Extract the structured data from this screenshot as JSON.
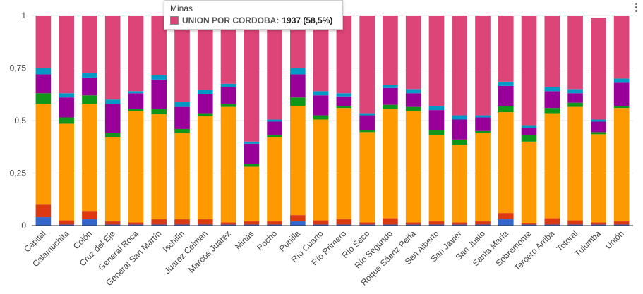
{
  "tooltip": {
    "title": "Minas",
    "series": "UNION POR CORDOBA",
    "value": "1937 (58,5%)",
    "color": "#dd4477"
  },
  "chart_data": {
    "type": "bar",
    "stacked": true,
    "normalized": true,
    "ylim": [
      0,
      1
    ],
    "yticks": [
      "0",
      "0,25",
      "0,5",
      "0,75",
      "1"
    ],
    "grid": true,
    "categories": [
      "Capital",
      "Calamuchita",
      "Colón",
      "Cruz del Eje",
      "General Roca",
      "General San Martín",
      "Ischilín",
      "Juárez Celman",
      "Marcos Juárez",
      "Minas",
      "Pocho",
      "Punilla",
      "Río Cuarto",
      "Río Primero",
      "Río Seco",
      "Río Segundo",
      "Roque Sáenz Peña",
      "San Alberto",
      "San Javier",
      "San Justo",
      "Santa María",
      "Sobremonte",
      "Tercero Arriba",
      "Totoral",
      "Tulumba",
      "Unión"
    ],
    "series": [
      {
        "color": "#3366cc",
        "values": [
          0.04,
          0.005,
          0.03,
          0.005,
          0.005,
          0.005,
          0.005,
          0.005,
          0.005,
          0.005,
          0.005,
          0.02,
          0.005,
          0.005,
          0.005,
          0.005,
          0.005,
          0.005,
          0.005,
          0.005,
          0.03,
          0.005,
          0.005,
          0.005,
          0.005,
          0.005
        ]
      },
      {
        "color": "#dc3912",
        "values": [
          0.06,
          0.02,
          0.04,
          0.015,
          0.01,
          0.025,
          0.025,
          0.025,
          0.01,
          0.015,
          0.015,
          0.03,
          0.02,
          0.025,
          0.01,
          0.03,
          0.01,
          0.015,
          0.01,
          0.015,
          0.03,
          0.005,
          0.03,
          0.02,
          0.01,
          0.015
        ]
      },
      {
        "color": "#ff9900",
        "values": [
          0.48,
          0.46,
          0.51,
          0.4,
          0.53,
          0.5,
          0.41,
          0.49,
          0.55,
          0.26,
          0.4,
          0.52,
          0.48,
          0.53,
          0.43,
          0.52,
          0.53,
          0.41,
          0.37,
          0.42,
          0.48,
          0.39,
          0.5,
          0.54,
          0.42,
          0.54
        ]
      },
      {
        "color": "#109618",
        "values": [
          0.05,
          0.03,
          0.04,
          0.02,
          0.01,
          0.025,
          0.02,
          0.015,
          0.015,
          0.015,
          0.01,
          0.04,
          0.02,
          0.01,
          0.01,
          0.02,
          0.02,
          0.025,
          0.025,
          0.01,
          0.03,
          0.03,
          0.025,
          0.02,
          0.01,
          0.01
        ]
      },
      {
        "color": "#990099",
        "values": [
          0.09,
          0.095,
          0.085,
          0.14,
          0.075,
          0.14,
          0.105,
          0.09,
          0.08,
          0.095,
          0.065,
          0.11,
          0.095,
          0.045,
          0.07,
          0.08,
          0.065,
          0.095,
          0.095,
          0.065,
          0.095,
          0.035,
          0.08,
          0.045,
          0.05,
          0.11
        ]
      },
      {
        "color": "#0099c6",
        "values": [
          0.03,
          0.02,
          0.02,
          0.02,
          0.01,
          0.02,
          0.025,
          0.02,
          0.015,
          0.01,
          0.01,
          0.03,
          0.02,
          0.015,
          0.01,
          0.015,
          0.02,
          0.02,
          0.02,
          0.01,
          0.02,
          0.01,
          0.02,
          0.02,
          0.01,
          0.02
        ]
      },
      {
        "color": "#dd4477",
        "values": [
          0.25,
          0.37,
          0.275,
          0.4,
          0.36,
          0.285,
          0.41,
          0.355,
          0.325,
          0.585,
          0.495,
          0.25,
          0.35,
          0.37,
          0.465,
          0.33,
          0.35,
          0.43,
          0.475,
          0.475,
          0.315,
          0.525,
          0.34,
          0.35,
          0.485,
          0.3
        ]
      }
    ]
  }
}
